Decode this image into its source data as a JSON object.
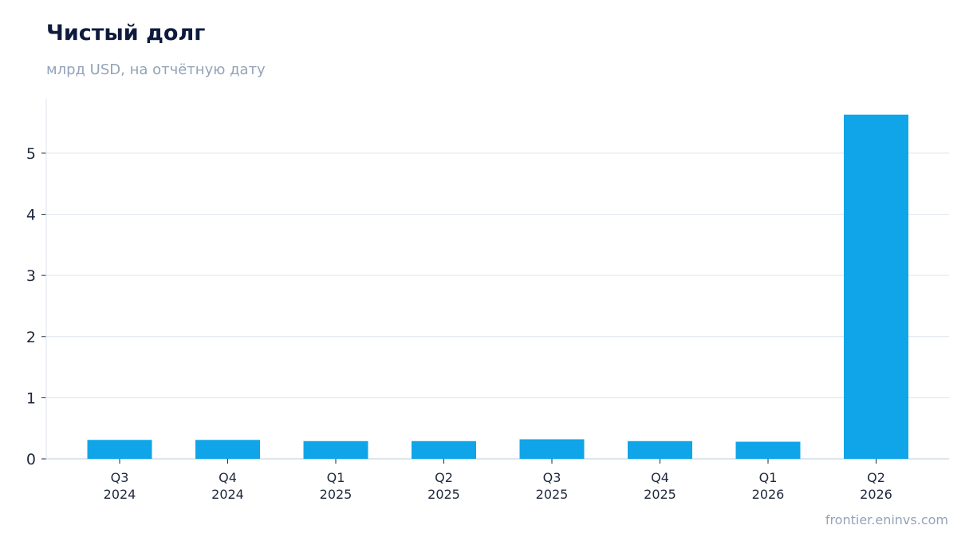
{
  "chart_data": {
    "type": "bar",
    "title": "Чистый долг",
    "subtitle": "млрд USD, на отчётную дату",
    "categories": [
      [
        "Q3",
        "2024"
      ],
      [
        "Q4",
        "2024"
      ],
      [
        "Q1",
        "2025"
      ],
      [
        "Q2",
        "2025"
      ],
      [
        "Q3",
        "2025"
      ],
      [
        "Q4",
        "2025"
      ],
      [
        "Q1",
        "2026"
      ],
      [
        "Q2",
        "2026"
      ]
    ],
    "values": [
      0.31,
      0.31,
      0.29,
      0.29,
      0.32,
      0.29,
      0.28,
      5.63
    ],
    "yticks": [
      0,
      1,
      2,
      3,
      4,
      5
    ],
    "ylim": [
      0,
      5.9
    ],
    "grid": true,
    "bar_color": "#10a5e8",
    "grid_color": "#e2e8f0"
  },
  "footer": {
    "source": "frontier.eninvs.com"
  }
}
